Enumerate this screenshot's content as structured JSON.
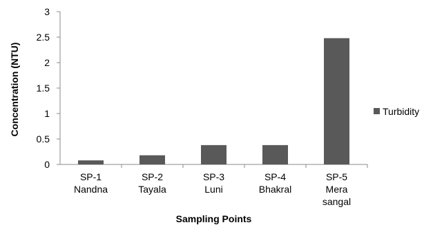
{
  "chart_data": {
    "type": "bar",
    "categories": [
      [
        "SP-1",
        "Nandna"
      ],
      [
        "SP-2",
        "Tayala"
      ],
      [
        "SP-3",
        "Luni"
      ],
      [
        "SP-4",
        "Bhakral"
      ],
      [
        "SP-5",
        "Mera",
        "sangal"
      ]
    ],
    "series": [
      {
        "name": "Turbidity",
        "values": [
          0.08,
          0.18,
          0.38,
          0.38,
          2.48
        ],
        "color": "#595959"
      }
    ],
    "xlabel": "Sampling Points",
    "ylabel": "Concentration (NTU)",
    "ylim": [
      0,
      3
    ],
    "yticks": [
      "0",
      "0.5",
      "1",
      "1.5",
      "2",
      "2.5",
      "3"
    ],
    "grid": false,
    "legend_position": "right"
  }
}
